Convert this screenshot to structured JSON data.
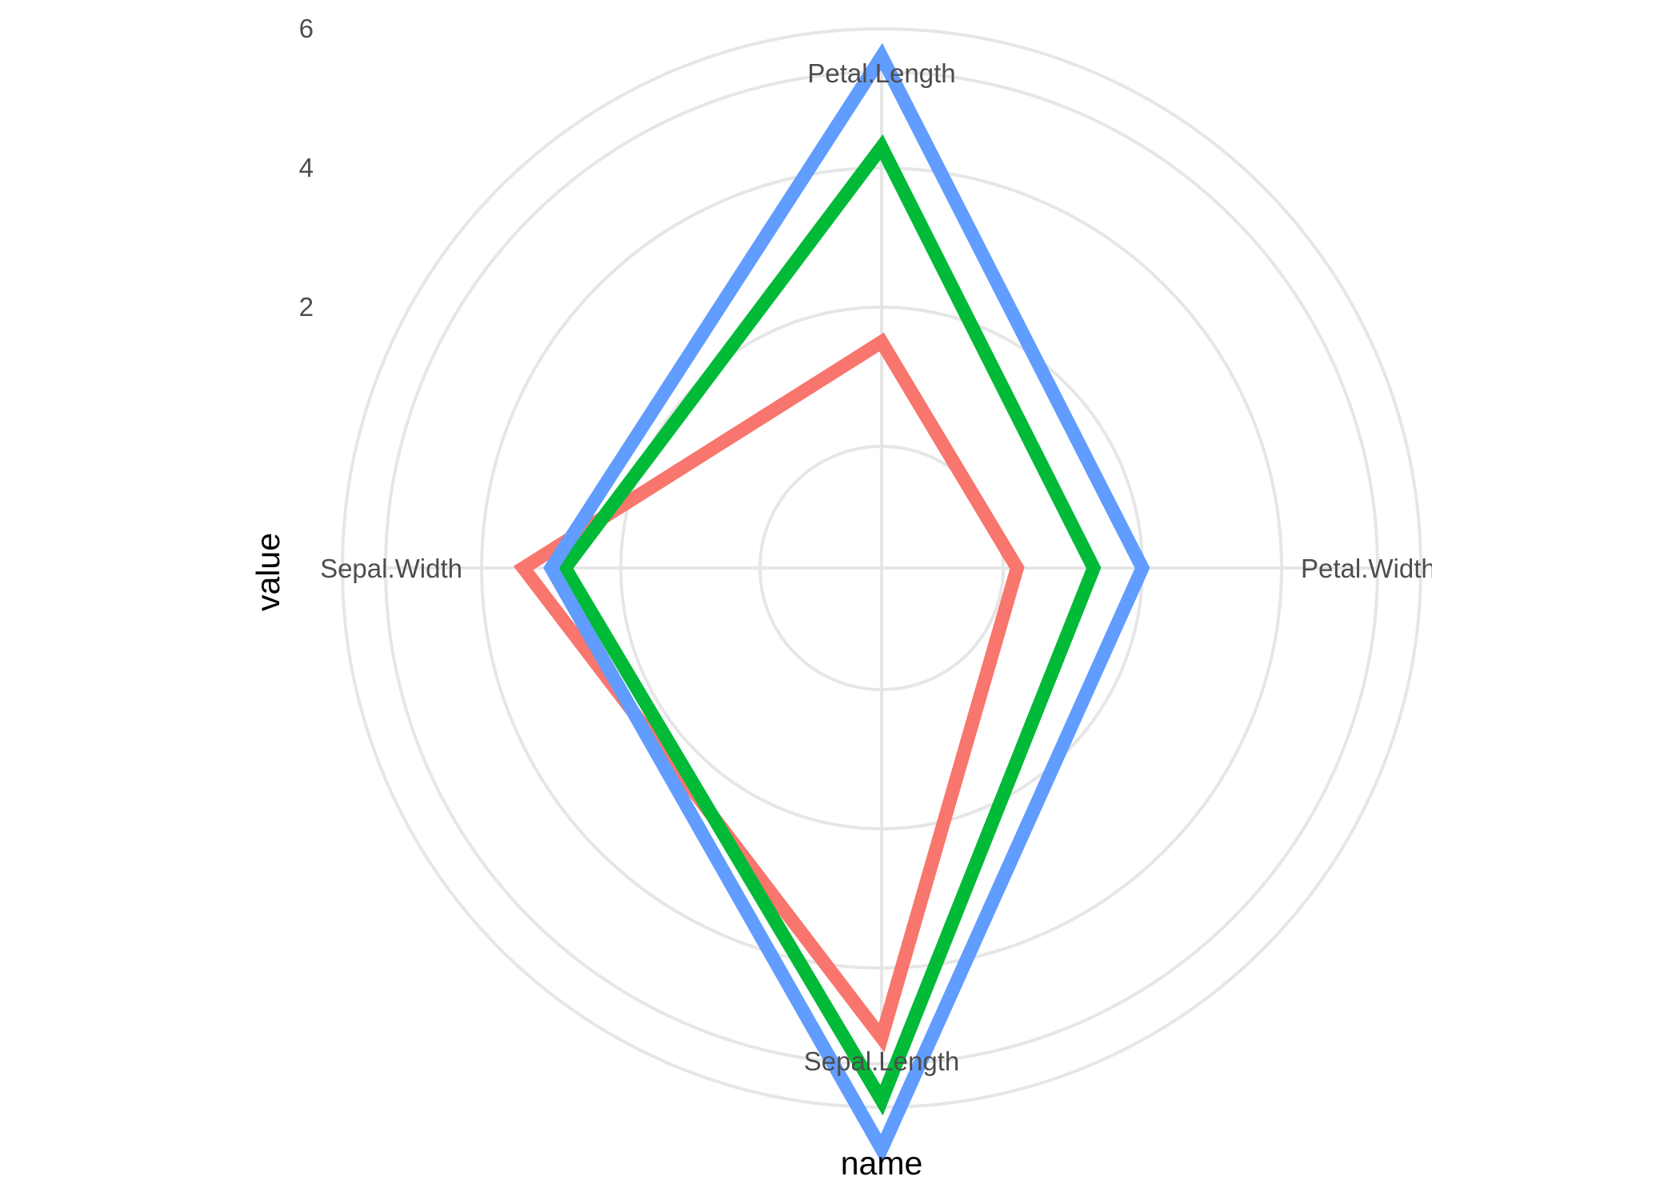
{
  "chart_data": {
    "type": "radar",
    "xlabel": "name",
    "ylabel": "value",
    "categories": [
      "Sepal.Length",
      "Sepal.Width",
      "Petal.Length",
      "Petal.Width"
    ],
    "category_labels_shown": [
      "Sepal.Length",
      "epal.Width",
      "Petal.Length",
      "Petal.Widt"
    ],
    "radial_ticks": [
      {
        "value": 2,
        "label": "2"
      },
      {
        "value": 4,
        "label": "4"
      },
      {
        "value": 6,
        "label": "6"
      }
    ],
    "rlim": [
      0,
      7.7
    ],
    "grid": true,
    "legend": "none",
    "series": [
      {
        "color": "#F8766D",
        "values": [
          5.0,
          3.4,
          1.5,
          0.2
        ]
      },
      {
        "color": "#00BA38",
        "values": [
          5.9,
          2.8,
          4.3,
          1.3
        ]
      },
      {
        "color": "#619CFF",
        "values": [
          6.6,
          3.0,
          5.6,
          2.0
        ]
      }
    ]
  }
}
